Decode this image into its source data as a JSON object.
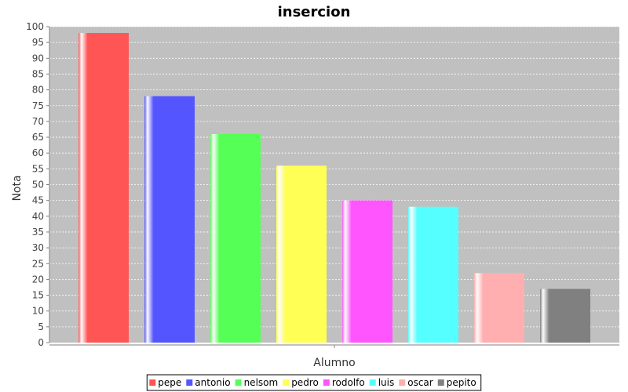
{
  "chart_data": {
    "type": "bar",
    "title": "insercion",
    "xlabel": "Alumno",
    "ylabel": "Nota",
    "ylim": [
      0,
      100
    ],
    "yticks": [
      0,
      5,
      10,
      15,
      20,
      25,
      30,
      35,
      40,
      45,
      50,
      55,
      60,
      65,
      70,
      75,
      80,
      85,
      90,
      95,
      100
    ],
    "grid": true,
    "legend_position": "bottom",
    "series": [
      {
        "name": "pepe",
        "value": 98,
        "color": "#ff5555"
      },
      {
        "name": "antonio",
        "value": 78,
        "color": "#5555ff"
      },
      {
        "name": "nelsom",
        "value": 66,
        "color": "#55ff55"
      },
      {
        "name": "pedro",
        "value": 56,
        "color": "#ffff55"
      },
      {
        "name": "rodolfo",
        "value": 45,
        "color": "#ff55ff"
      },
      {
        "name": "luis",
        "value": 43,
        "color": "#55ffff"
      },
      {
        "name": "oscar",
        "value": 22,
        "color": "#ffafaf"
      },
      {
        "name": "pepito",
        "value": 17,
        "color": "#808080"
      }
    ],
    "colors": {
      "plot_background": "#c0c0c0",
      "gridline": "#ffffff",
      "axis": "#808080"
    }
  }
}
